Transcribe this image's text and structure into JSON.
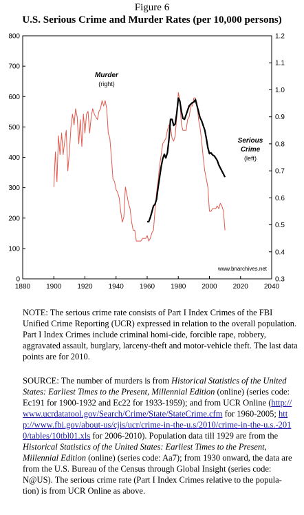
{
  "figure_label": "Figure 6",
  "figure_title": "U.S. Serious Crime and Murder Rates (per 10,000 persons)",
  "chart_data": {
    "type": "line",
    "title": "U.S. Serious Crime and Murder Rates (per 10,000 persons)",
    "xlim": [
      1880,
      2040
    ],
    "x_ticks": [
      "1880",
      "1900",
      "1920",
      "1940",
      "1960",
      "1980",
      "2000",
      "2020",
      "2040"
    ],
    "y_left": {
      "lim": [
        0,
        800
      ],
      "ticks": [
        "0",
        "100",
        "200",
        "300",
        "400",
        "500",
        "600",
        "700",
        "800"
      ]
    },
    "y_right": {
      "lim": [
        0.3,
        1.2
      ],
      "ticks": [
        "0.3",
        "0.4",
        "0.5",
        "0.6",
        "0.7",
        "0.8",
        "0.9",
        "1.0",
        "1.1",
        "1.2"
      ]
    },
    "grid": false,
    "series": [
      {
        "name": "Murder",
        "axis": "right",
        "color": "#e2584c",
        "x": [
          1900,
          1901,
          1902,
          1903,
          1904,
          1905,
          1906,
          1907,
          1908,
          1909,
          1910,
          1911,
          1912,
          1913,
          1914,
          1915,
          1916,
          1917,
          1918,
          1919,
          1920,
          1921,
          1922,
          1923,
          1924,
          1925,
          1926,
          1927,
          1928,
          1929,
          1930,
          1931,
          1932,
          1933,
          1934,
          1935,
          1936,
          1937,
          1938,
          1939,
          1940,
          1941,
          1942,
          1943,
          1944,
          1945,
          1946,
          1947,
          1948,
          1949,
          1950,
          1951,
          1952,
          1953,
          1954,
          1955,
          1956,
          1957,
          1958,
          1959,
          1960,
          1961,
          1962,
          1963,
          1964,
          1965,
          1966,
          1967,
          1968,
          1969,
          1970,
          1971,
          1972,
          1973,
          1974,
          1975,
          1976,
          1977,
          1978,
          1979,
          1980,
          1981,
          1982,
          1983,
          1984,
          1985,
          1986,
          1987,
          1988,
          1989,
          1990,
          1991,
          1992,
          1993,
          1994,
          1995,
          1996,
          1997,
          1998,
          1999,
          2000,
          2001,
          2002,
          2003,
          2004,
          2005,
          2006,
          2007,
          2008,
          2009,
          2010
        ],
        "values": [
          0.64,
          0.77,
          0.66,
          0.83,
          0.76,
          0.84,
          0.76,
          0.81,
          0.85,
          0.7,
          0.77,
          0.86,
          0.91,
          0.87,
          0.93,
          0.9,
          0.8,
          0.89,
          0.79,
          0.91,
          0.84,
          0.91,
          0.92,
          0.84,
          0.9,
          0.93,
          0.91,
          0.9,
          0.89,
          0.92,
          0.93,
          0.96,
          0.94,
          0.96,
          0.93,
          0.84,
          0.82,
          0.75,
          0.67,
          0.66,
          0.63,
          0.62,
          0.6,
          0.55,
          0.51,
          0.53,
          0.64,
          0.61,
          0.58,
          0.56,
          0.51,
          0.48,
          0.48,
          0.44,
          0.44,
          0.44,
          0.44,
          0.45,
          0.45,
          0.45,
          0.46,
          0.44,
          0.45,
          0.47,
          0.48,
          0.55,
          0.62,
          0.66,
          0.72,
          0.76,
          0.8,
          0.81,
          0.82,
          0.85,
          0.87,
          0.86,
          0.82,
          0.81,
          0.83,
          0.9,
          0.99,
          0.96,
          0.87,
          0.85,
          0.85,
          0.85,
          0.89,
          0.9,
          0.94,
          0.94,
          0.97,
          0.97,
          0.95,
          0.89,
          0.86,
          0.81,
          0.75,
          0.7,
          0.67,
          0.64,
          0.55,
          0.55,
          0.56,
          0.56,
          0.56,
          0.57,
          0.56,
          0.58,
          0.57,
          0.55,
          0.48
        ]
      },
      {
        "name": "Serious Crime",
        "axis": "left",
        "color": "#000000",
        "x": [
          1960,
          1961,
          1962,
          1963,
          1964,
          1965,
          1966,
          1967,
          1968,
          1969,
          1970,
          1971,
          1972,
          1973,
          1974,
          1975,
          1976,
          1977,
          1978,
          1979,
          1980,
          1981,
          1982,
          1983,
          1984,
          1985,
          1986,
          1987,
          1988,
          1989,
          1990,
          1991,
          1992,
          1993,
          1994,
          1995,
          1996,
          1997,
          1998,
          1999,
          2000,
          2001,
          2002,
          2003,
          2004,
          2005,
          2006,
          2007,
          2008,
          2009,
          2010
        ],
        "values": [
          188,
          188,
          202,
          220,
          240,
          245,
          262,
          300,
          335,
          370,
          395,
          410,
          398,
          415,
          460,
          525,
          525,
          505,
          510,
          545,
          595,
          585,
          550,
          528,
          525,
          540,
          555,
          570,
          575,
          580,
          582,
          590,
          570,
          550,
          530,
          520,
          505,
          490,
          462,
          432,
          412,
          415,
          408,
          405,
          398,
          390,
          375,
          365,
          355,
          345,
          335
        ]
      }
    ],
    "annotations": {
      "murder_label": "Murder",
      "murder_sub": "(right)",
      "crime_label_1": "Serious",
      "crime_label_2": "Crime",
      "crime_sub": "(left)",
      "watermark": "www.bnarchives.net"
    }
  },
  "note": {
    "lead": "NOTE:",
    "text": "The serious crime rate consists of Part I Index Crimes of the FBI Unified Crime Reporting (UCR) expressed in relation to the overall population. Part I Index Crimes include criminal homi-cide, forcible rape, robbery, aggravated assault, burglary, larceny-theft and motor-vehicle theft. The last data points are for 2010."
  },
  "source": {
    "lead": "SOURCE:",
    "t1": "The number of murders is from",
    "book1": "Historical Statistics of the United States: Earliest Times to the Present, Millennial Edition",
    "t2": "(online) (series code: Ec191 for 1900-1932 and Ec22 for 1933-1959); and from UCR Online (",
    "link1": "http://www.ucrdatatool.gov/Search/Crime/State/StateCrime.cfm",
    "t3": "for 1960-2005;",
    "link2": "http://www.fbi.gov/about-us/cjis/ucr/crime-in-the-u.s/2010/crime-in-the-u.s.-2010/tables/10tbl01.xls",
    "t4": "for 2006-2010). Population data till 1929 are from the",
    "book2": "Historical Statistics of the United States: Earliest Times to the Present, Millennial Edition",
    "t5": "(online) (series code: Aa7); from 1930 onward, the data are from the U.S. Bureau of the Census through Global Insight (series code: N@US). The serious crime rate (Part I Index Crimes relative to the popula-tion) is from UCR Online as above."
  }
}
